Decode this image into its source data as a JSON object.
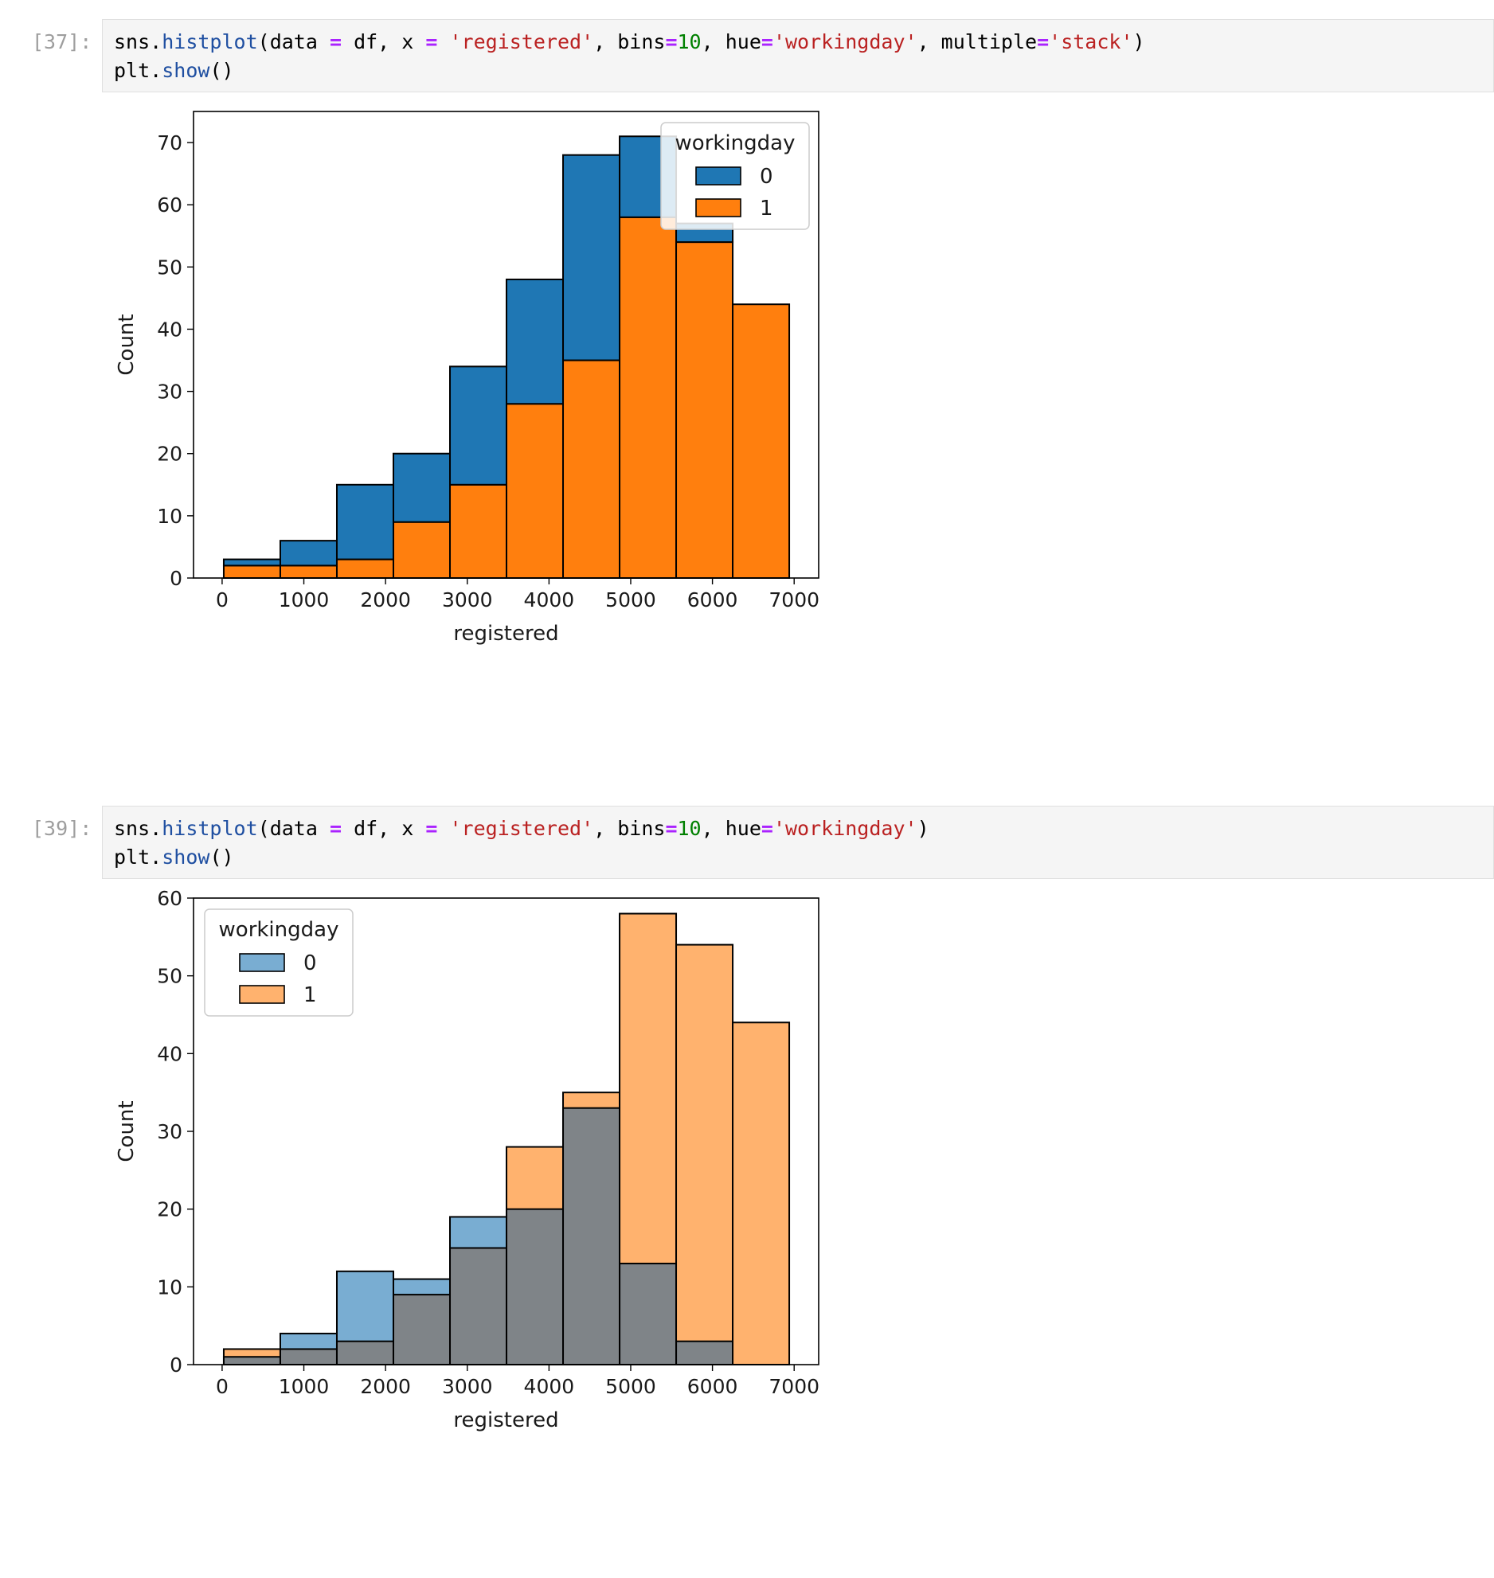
{
  "cells": [
    {
      "prompt": "[37]:",
      "code": {
        "line1": {
          "p1": "sns.",
          "fn": "histplot",
          "p2": "(data ",
          "eq1": "=",
          "p3": " df, x ",
          "eq2": "=",
          "p4": " ",
          "s1": "'registered'",
          "p5": ", bins",
          "eq3": "=",
          "n1": "10",
          "p6": ", hue",
          "eq4": "=",
          "s2": "'workingday'",
          "p7": ", multiple",
          "eq5": "=",
          "s3": "'stack'",
          "p8": ")"
        },
        "line2": {
          "p1": "plt.",
          "fn": "show",
          "p2": "()"
        }
      }
    },
    {
      "prompt": "[39]:",
      "code": {
        "line1": {
          "p1": "sns.",
          "fn": "histplot",
          "p2": "(data ",
          "eq1": "=",
          "p3": " df, x ",
          "eq2": "=",
          "p4": " ",
          "s1": "'registered'",
          "p5": ", bins",
          "eq3": "=",
          "n1": "10",
          "p6": ", hue",
          "eq4": "=",
          "s2": "'workingday'",
          "p8": ")"
        },
        "line2": {
          "p1": "plt.",
          "fn": "show",
          "p2": "()"
        }
      }
    }
  ],
  "colors": {
    "series0": "#1f77b4",
    "series1": "#ff7f0e",
    "overlap": "#7f8488"
  },
  "chart_data": [
    {
      "type": "bar",
      "variant": "histogram-stacked",
      "bin_edges": [
        20,
        712,
        1404,
        2096,
        2788,
        3480,
        4172,
        4864,
        5556,
        6248,
        6940
      ],
      "xlabel": "registered",
      "ylabel": "Count",
      "xlim": [
        -350,
        7300
      ],
      "ylim": [
        0,
        75
      ],
      "xticks": [
        0,
        1000,
        2000,
        3000,
        4000,
        5000,
        6000,
        7000
      ],
      "yticks": [
        0,
        10,
        20,
        30,
        40,
        50,
        60,
        70
      ],
      "legend": {
        "title": "workingday",
        "position": "top-right",
        "entries": [
          "0",
          "1"
        ]
      },
      "series": [
        {
          "name": "0",
          "values": [
            1,
            4,
            12,
            11,
            19,
            20,
            33,
            13,
            3,
            0
          ]
        },
        {
          "name": "1",
          "values": [
            2,
            2,
            3,
            9,
            15,
            28,
            35,
            58,
            54,
            44
          ]
        }
      ]
    },
    {
      "type": "bar",
      "variant": "histogram-layered",
      "bin_edges": [
        20,
        712,
        1404,
        2096,
        2788,
        3480,
        4172,
        4864,
        5556,
        6248,
        6940
      ],
      "xlabel": "registered",
      "ylabel": "Count",
      "xlim": [
        -350,
        7300
      ],
      "ylim": [
        0,
        60
      ],
      "xticks": [
        0,
        1000,
        2000,
        3000,
        4000,
        5000,
        6000,
        7000
      ],
      "yticks": [
        0,
        10,
        20,
        30,
        40,
        50,
        60
      ],
      "legend": {
        "title": "workingday",
        "position": "top-left",
        "entries": [
          "0",
          "1"
        ]
      },
      "series": [
        {
          "name": "0",
          "values": [
            1,
            4,
            12,
            11,
            19,
            20,
            33,
            13,
            3,
            0
          ]
        },
        {
          "name": "1",
          "values": [
            2,
            2,
            3,
            9,
            15,
            28,
            35,
            58,
            54,
            44
          ]
        }
      ]
    }
  ]
}
